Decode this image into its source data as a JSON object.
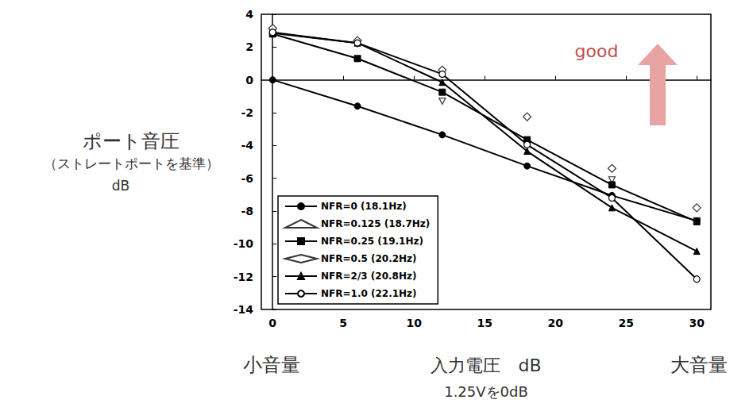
{
  "chart_data": {
    "type": "line",
    "x": [
      0,
      6,
      12,
      18,
      24,
      30
    ],
    "xlim": [
      -0.8,
      31
    ],
    "xticks": [
      0,
      5,
      10,
      15,
      20,
      25,
      30
    ],
    "ylim": [
      -14,
      4
    ],
    "yticks": [
      -14,
      -12,
      -10,
      -8,
      -6,
      -4,
      -2,
      0,
      2,
      4
    ],
    "grid": false,
    "legend": "lower left",
    "ylabel_lines": [
      "ポート音圧",
      "（ストレートポートを基準）",
      "dB"
    ],
    "xlabel": "入力電圧　dB",
    "xlabel_note": "1.25Vを0dB",
    "x_left_note": "小音量",
    "x_right_note": "大音量",
    "annotation": {
      "text": "good",
      "color": "#c0504d"
    },
    "series": [
      {
        "name": "NFR=0 (18.1Hz)",
        "type": "line",
        "marker": "circle",
        "line_style": "solid",
        "color": "#000000",
        "values": [
          0,
          -1.6,
          -3.35,
          -5.25,
          -7.05,
          -8.6
        ]
      },
      {
        "name": "NFR=0.125 (18.7Hz)",
        "type": "scatter",
        "marker": "open_triangle_down",
        "color": "#000000",
        "values": [
          2.9,
          2.2,
          -1.3,
          -4.0,
          -6.1,
          -8.6
        ]
      },
      {
        "name": "NFR=0.25 (19.1Hz)",
        "type": "line",
        "marker": "square",
        "line_style": "solid",
        "color": "#000000",
        "values": [
          2.8,
          1.3,
          -0.75,
          -3.65,
          -6.4,
          -8.65
        ]
      },
      {
        "name": "NFR=0.5 (20.2Hz)",
        "type": "scatter",
        "marker": "open_diamond",
        "color": "#000000",
        "values": [
          3.15,
          2.4,
          0.6,
          -2.25,
          -5.4,
          -7.8
        ]
      },
      {
        "name": "NFR=2/3 (20.8Hz)",
        "type": "line",
        "marker": "triangle",
        "line_style": "solid",
        "color": "#000000",
        "values": [
          2.85,
          2.25,
          -0.15,
          -4.35,
          -7.8,
          -10.45
        ]
      },
      {
        "name": "NFR=1.0 (22.1Hz)",
        "type": "line",
        "marker": "open_circle",
        "line_style": "solid",
        "color": "#000000",
        "values": [
          2.9,
          2.25,
          0.35,
          -3.95,
          -7.2,
          -12.15
        ]
      }
    ]
  }
}
